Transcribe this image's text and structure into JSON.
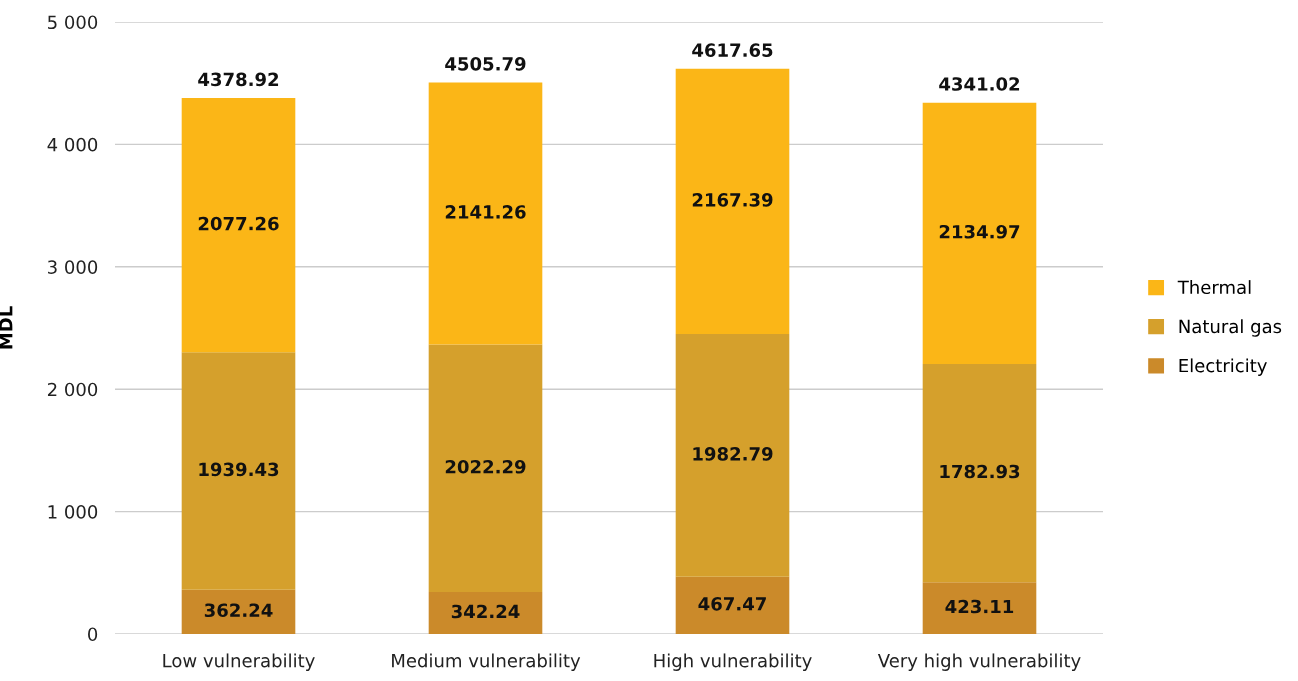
{
  "chart_data": {
    "type": "bar",
    "stacked": true,
    "ylabel": "MDL",
    "categories": [
      "Low vulnerability",
      "Medium vulnerability",
      "High vulnerability",
      "Very high vulnerability"
    ],
    "series": [
      {
        "name": "Electricity",
        "color": "#cb8a2a",
        "values": [
          362.24,
          342.24,
          467.47,
          423.11
        ]
      },
      {
        "name": "Natural gas",
        "color": "#d5a02c",
        "values": [
          1939.43,
          2022.29,
          1982.79,
          1782.93
        ]
      },
      {
        "name": "Thermal",
        "color": "#fbb617",
        "values": [
          2077.26,
          2141.26,
          2167.39,
          2134.97
        ]
      }
    ],
    "totals": [
      "4378.92",
      "4505.79",
      "4617.65",
      "4341.02"
    ],
    "data_labels": true,
    "ylim": [
      0,
      5000
    ],
    "yticks": [
      0,
      {
        "value": 1000,
        "label": "1 000"
      },
      {
        "value": 2000,
        "label": "2 000"
      },
      {
        "value": 3000,
        "label": "3 000"
      },
      {
        "value": 4000,
        "label": "4 000"
      },
      {
        "value": 5000,
        "label": "5 000"
      }
    ],
    "grid": "y",
    "legend": "right"
  }
}
